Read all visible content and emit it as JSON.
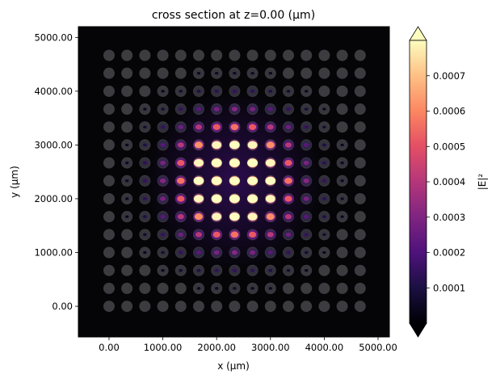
{
  "chart_data": {
    "type": "heatmap",
    "title": "cross section at z=0.00 (µm)",
    "xlabel": "x (µm)",
    "ylabel": "y (µm)",
    "xlim": [
      -570,
      5210
    ],
    "ylim": [
      -570,
      5200
    ],
    "x_ticks": [
      "0.00",
      "1000.00",
      "2000.00",
      "3000.00",
      "4000.00",
      "5000.00"
    ],
    "x_tick_values": [
      0,
      1000,
      2000,
      3000,
      4000,
      5000
    ],
    "y_ticks": [
      "0.00",
      "1000.00",
      "2000.00",
      "3000.00",
      "4000.00",
      "5000.00"
    ],
    "y_tick_values": [
      0,
      1000,
      2000,
      3000,
      4000,
      5000
    ],
    "rod_grid": {
      "count_x": 15,
      "count_y": 15,
      "pitch": 333.33,
      "start": 0
    },
    "field_center": [
      2333,
      2333
    ],
    "field_peak": 0.0012,
    "field_width": 1150,
    "colormap": "magma",
    "colorbar": {
      "label": "|E|²",
      "vmin": 0,
      "vmax": 0.0008,
      "extend": "both",
      "ticks": [
        "0.0001",
        "0.0002",
        "0.0003",
        "0.0004",
        "0.0005",
        "0.0006",
        "0.0007"
      ],
      "tick_values": [
        0.0001,
        0.0002,
        0.0003,
        0.0004,
        0.0005,
        0.0006,
        0.0007
      ]
    },
    "grid": false
  }
}
